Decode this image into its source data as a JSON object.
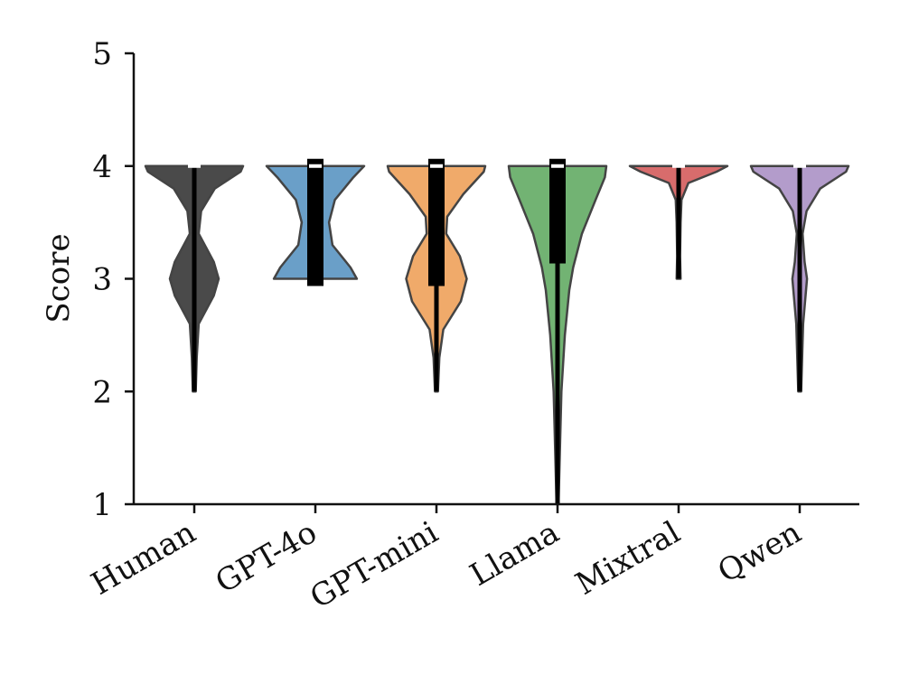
{
  "chart_data": {
    "type": "violin",
    "title": "",
    "xlabel": "",
    "ylabel": "Score",
    "ylim": [
      1,
      5
    ],
    "yticks": [
      1,
      2,
      3,
      4,
      5
    ],
    "grid": false,
    "categories": [
      "Human",
      "GPT-4o",
      "GPT-mini",
      "Llama",
      "Mixtral",
      "Qwen"
    ],
    "colors": [
      "#4a4a4a",
      "#6a9fc8",
      "#f0aa6a",
      "#72b373",
      "#d86c6c",
      "#b39ccb"
    ],
    "series": [
      {
        "category": "Human",
        "min": 2,
        "max": 4,
        "median": 4,
        "q1": 4,
        "q3": 4,
        "density": [
          [
            2,
            0.03
          ],
          [
            2.3,
            0.05
          ],
          [
            2.6,
            0.09
          ],
          [
            2.85,
            0.4
          ],
          [
            3.0,
            0.5
          ],
          [
            3.15,
            0.4
          ],
          [
            3.4,
            0.09
          ],
          [
            3.6,
            0.14
          ],
          [
            3.8,
            0.42
          ],
          [
            3.95,
            0.95
          ],
          [
            4,
            1.0
          ]
        ]
      },
      {
        "category": "GPT-4o",
        "min": 3,
        "max": 4,
        "median": 4,
        "q1": 3,
        "q3": 4,
        "density": [
          [
            3,
            0.85
          ],
          [
            3.1,
            0.72
          ],
          [
            3.3,
            0.35
          ],
          [
            3.5,
            0.28
          ],
          [
            3.7,
            0.4
          ],
          [
            3.9,
            0.78
          ],
          [
            4,
            1.0
          ]
        ]
      },
      {
        "category": "GPT-mini",
        "min": 2,
        "max": 4,
        "median": 4,
        "q1": 3,
        "q3": 4,
        "density": [
          [
            2,
            0.03
          ],
          [
            2.3,
            0.06
          ],
          [
            2.55,
            0.14
          ],
          [
            2.8,
            0.5
          ],
          [
            3.0,
            0.62
          ],
          [
            3.2,
            0.48
          ],
          [
            3.4,
            0.2
          ],
          [
            3.55,
            0.22
          ],
          [
            3.75,
            0.55
          ],
          [
            3.95,
            0.97
          ],
          [
            4,
            1.0
          ]
        ]
      },
      {
        "category": "Llama",
        "min": 1,
        "max": 4,
        "median": 4,
        "q1": 3.2,
        "q3": 4,
        "density": [
          [
            1,
            0.02
          ],
          [
            1.5,
            0.05
          ],
          [
            2,
            0.08
          ],
          [
            2.5,
            0.15
          ],
          [
            2.9,
            0.24
          ],
          [
            3.1,
            0.32
          ],
          [
            3.4,
            0.5
          ],
          [
            3.7,
            0.78
          ],
          [
            3.9,
            0.97
          ],
          [
            4,
            1.0
          ]
        ]
      },
      {
        "category": "Mixtral",
        "min": 3,
        "max": 4,
        "median": 4,
        "q1": 4,
        "q3": 4,
        "density": [
          [
            3,
            0.04
          ],
          [
            3.2,
            0.03
          ],
          [
            3.5,
            0.04
          ],
          [
            3.7,
            0.06
          ],
          [
            3.85,
            0.2
          ],
          [
            3.95,
            0.78
          ],
          [
            4,
            1.0
          ]
        ]
      },
      {
        "category": "Qwen",
        "min": 2,
        "max": 4,
        "median": 4,
        "q1": 4,
        "q3": 4,
        "density": [
          [
            2,
            0.03
          ],
          [
            2.3,
            0.05
          ],
          [
            2.6,
            0.07
          ],
          [
            2.85,
            0.12
          ],
          [
            3.0,
            0.15
          ],
          [
            3.15,
            0.1
          ],
          [
            3.4,
            0.06
          ],
          [
            3.6,
            0.14
          ],
          [
            3.8,
            0.42
          ],
          [
            3.95,
            0.95
          ],
          [
            4,
            1.0
          ]
        ]
      }
    ]
  }
}
